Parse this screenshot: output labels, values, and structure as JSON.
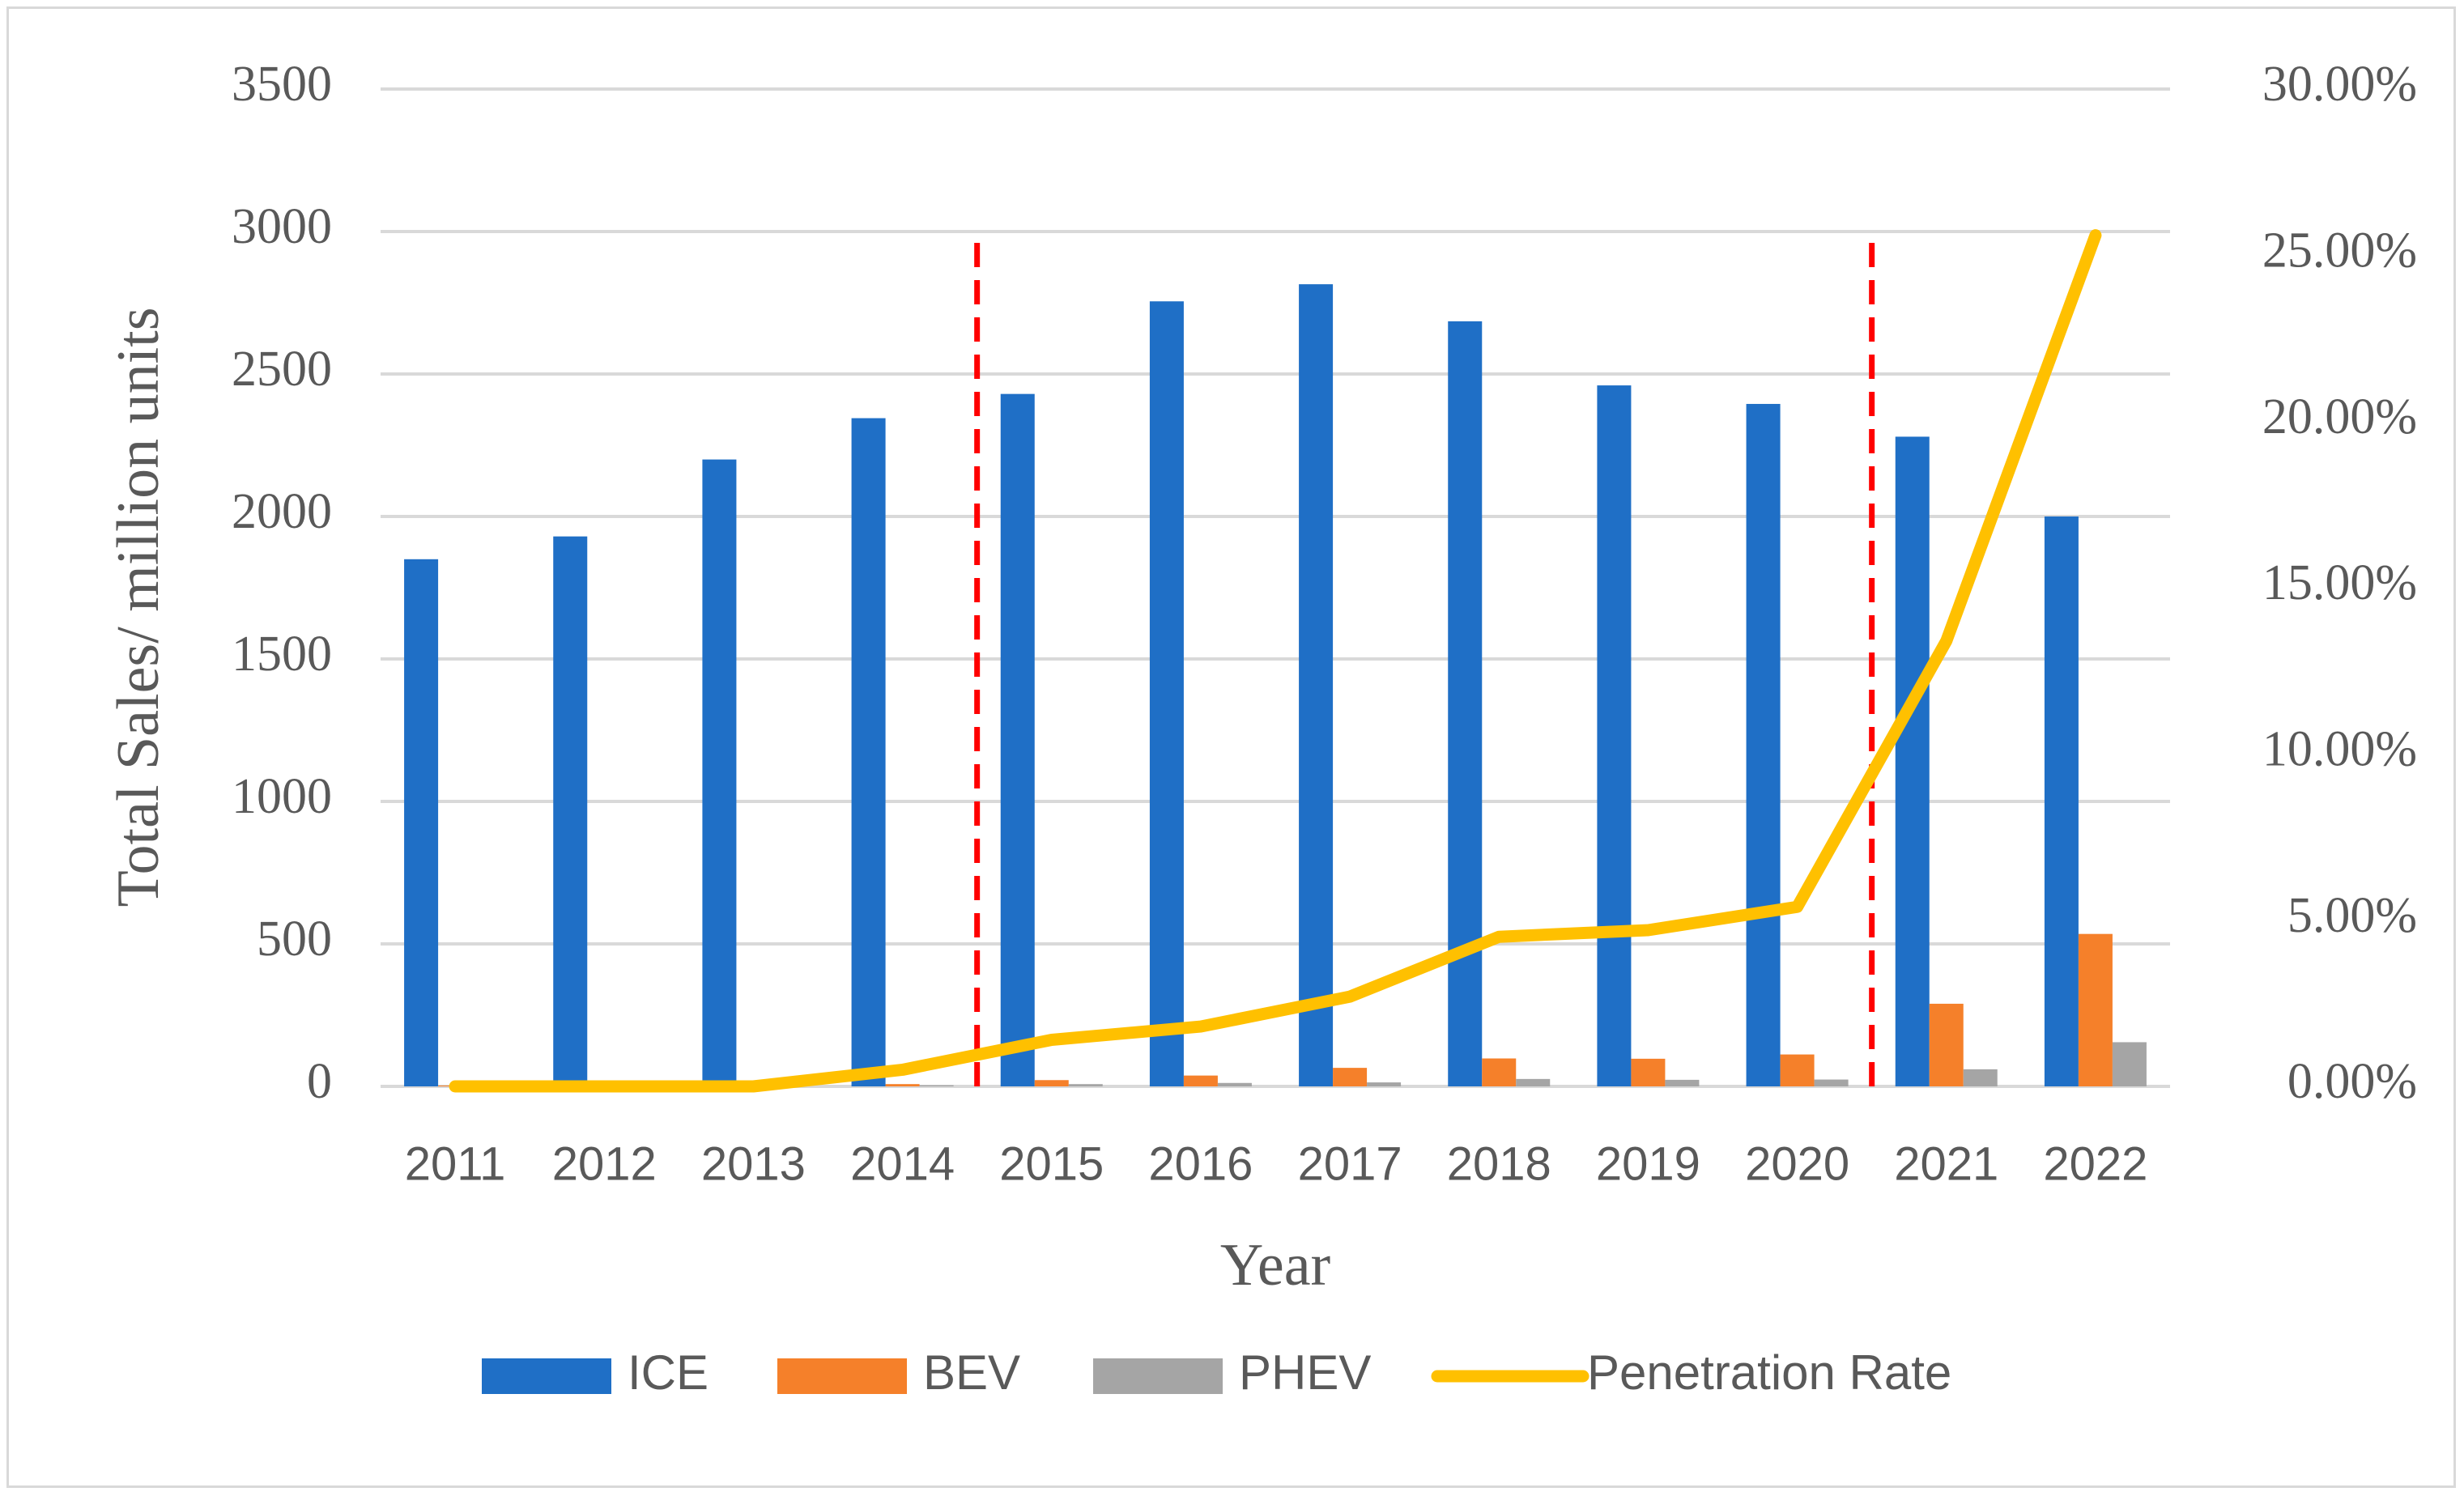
{
  "chart_data": {
    "type": "bar",
    "categories": [
      "2011",
      "2012",
      "2013",
      "2014",
      "2015",
      "2016",
      "2017",
      "2018",
      "2019",
      "2020",
      "2021",
      "2022"
    ],
    "series": [
      {
        "name": "ICE",
        "type": "bar",
        "axis": "left",
        "color": "#1f6fc6",
        "values": [
          1850,
          1930,
          2200,
          2345,
          2430,
          2755,
          2815,
          2685,
          2460,
          2395,
          2280,
          2000
        ]
      },
      {
        "name": "BEV",
        "type": "bar",
        "axis": "left",
        "color": "#f5802a",
        "values": [
          3,
          4,
          5,
          8,
          22,
          38,
          65,
          98,
          97,
          112,
          290,
          535
        ]
      },
      {
        "name": "PHEV",
        "type": "bar",
        "axis": "left",
        "color": "#a5a5a5",
        "values": [
          1,
          1,
          2,
          4,
          8,
          12,
          14,
          26,
          23,
          24,
          60,
          155
        ]
      },
      {
        "name": "Penetration Rate",
        "type": "line",
        "axis": "right",
        "color": "#ffc000",
        "values": [
          0.0,
          0.0,
          0.0,
          0.005,
          0.014,
          0.018,
          0.027,
          0.045,
          0.047,
          0.054,
          0.134,
          0.256
        ]
      }
    ],
    "xlabel": "Year",
    "ylabel": "Total Sales/ million units",
    "ylim": [
      0,
      3500
    ],
    "yticks": [
      0,
      500,
      1000,
      1500,
      2000,
      2500,
      3000,
      3500
    ],
    "ytick_labels": [
      "0",
      "500",
      "1000",
      "1500",
      "2000",
      "2500",
      "3000",
      "3500"
    ],
    "y2lim": [
      0,
      0.3
    ],
    "y2ticks": [
      0,
      0.05,
      0.1,
      0.15,
      0.2,
      0.25,
      0.3
    ],
    "y2tick_labels": [
      "0.00%",
      "5.00%",
      "10.00%",
      "15.00%",
      "20.00%",
      "25.00%",
      "30.00%"
    ],
    "grid": true,
    "legend_position": "bottom",
    "annotations": [
      {
        "type": "dashed-vline",
        "color": "#ff0000",
        "between": [
          "2014",
          "2015"
        ],
        "y_from": 0,
        "y_to": 3000
      },
      {
        "type": "dashed-vline",
        "color": "#ff0000",
        "between": [
          "2020",
          "2021"
        ],
        "y_from": 0,
        "y_to": 3000
      }
    ]
  }
}
